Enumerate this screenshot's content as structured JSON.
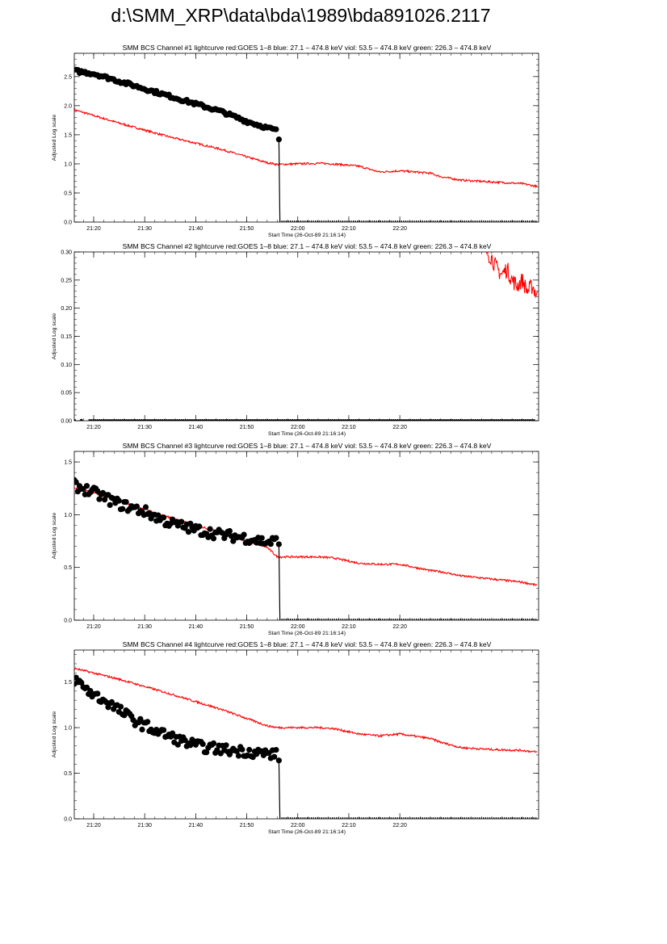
{
  "page": {
    "title": "d:\\SMM_XRP\\data\\bda\\1989\\bda891026.2117"
  },
  "chart_data": [
    {
      "type": "scatter",
      "title": "SMM BCS Channel #1 lightcurve  red:GOES 1–8  blue: 27.1 – 474.8 keV  viol: 53.5 – 474.8 keV  green: 226.3 – 474.8 keV",
      "xlabel": "Start Time (26-Oct-89 21:16:14)",
      "ylabel": "Adjusted Log scale",
      "xticks": [
        "21:20",
        "21:30",
        "21:40",
        "21:50",
        "22:00",
        "22:10",
        "22:20"
      ],
      "yticks": [
        "0.0",
        "0.5",
        "1.0",
        "1.5",
        "2.0",
        "2.5"
      ],
      "ylim": [
        0,
        2.9
      ],
      "series": [
        {
          "color": "#ff0000",
          "style": "line",
          "x": [
            16.2,
            25,
            35,
            45,
            50,
            54,
            56,
            60,
            64,
            67,
            72,
            76,
            80,
            86,
            88,
            92,
            98,
            104,
            107
          ],
          "y": [
            1.93,
            1.7,
            1.46,
            1.25,
            1.12,
            1.02,
            0.99,
            1.0,
            1.01,
            1.0,
            0.96,
            0.86,
            0.88,
            0.84,
            0.78,
            0.72,
            0.69,
            0.66,
            0.61
          ]
        },
        {
          "color": "#000000",
          "style": "points",
          "x": [
            16.2,
            20,
            25,
            30,
            35,
            40,
            45,
            50,
            54,
            56
          ],
          "y": [
            2.6,
            2.55,
            2.42,
            2.29,
            2.16,
            2.03,
            1.9,
            1.73,
            1.62,
            1.57
          ],
          "drop": {
            "x": 56.3,
            "y": 1.42
          }
        }
      ]
    },
    {
      "type": "scatter",
      "title": "SMM BCS Channel #2 lightcurve  red:GOES 1–8  blue: 27.1 – 474.8 keV  viol: 53.5 – 474.8 keV  green: 226.3 – 474.8 keV",
      "xlabel": "Start Time (26-Oct-89 21:16:14)",
      "ylabel": "Adjusted Log scale",
      "xticks": [
        "21:20",
        "21:30",
        "21:40",
        "21:50",
        "22:00",
        "22:10",
        "22:20"
      ],
      "yticks": [
        "0.00",
        "0.05",
        "0.10",
        "0.15",
        "0.20",
        "0.25",
        "0.30"
      ],
      "ylim": [
        0,
        0.3
      ],
      "series": [
        {
          "color": "#ff0000",
          "style": "line",
          "x": [
            97,
            98,
            99,
            100,
            101,
            102,
            103,
            104,
            105,
            106,
            107
          ],
          "y": [
            0.3,
            0.29,
            0.27,
            0.26,
            0.27,
            0.25,
            0.24,
            0.25,
            0.23,
            0.24,
            0.22
          ]
        },
        {
          "color": "#000000",
          "style": "points",
          "x": [
            16.2,
            56.3
          ],
          "y": [
            0.0,
            0.0
          ]
        }
      ]
    },
    {
      "type": "scatter",
      "title": "SMM BCS Channel #3 lightcurve  red:GOES 1–8  blue: 27.1 – 474.8 keV  viol: 53.5 – 474.8 keV  green: 226.3 – 474.8 keV",
      "xlabel": "Start Time (26-Oct-89 21:16:14)",
      "ylabel": "Adjusted Log scale",
      "xticks": [
        "21:20",
        "21:30",
        "21:40",
        "21:50",
        "22:00",
        "22:10",
        "22:20"
      ],
      "yticks": [
        "0.0",
        "0.5",
        "1.0",
        "1.5"
      ],
      "ylim": [
        0,
        1.6
      ],
      "series": [
        {
          "color": "#ff0000",
          "style": "line",
          "x": [
            16.2,
            25,
            35,
            45,
            50,
            54,
            56,
            60,
            64,
            67,
            72,
            76,
            80,
            86,
            88,
            92,
            98,
            104,
            107
          ],
          "y": [
            1.26,
            1.13,
            0.97,
            0.83,
            0.75,
            0.69,
            0.6,
            0.6,
            0.6,
            0.59,
            0.54,
            0.53,
            0.53,
            0.47,
            0.46,
            0.42,
            0.39,
            0.36,
            0.33
          ]
        },
        {
          "color": "#000000",
          "style": "points",
          "x": [
            16.2,
            20,
            25,
            30,
            35,
            40,
            45,
            50,
            54,
            56
          ],
          "y": [
            1.28,
            1.21,
            1.1,
            1.03,
            0.92,
            0.86,
            0.81,
            0.78,
            0.74,
            0.75
          ],
          "drop": {
            "x": 56.3,
            "y": 0.72
          }
        }
      ]
    },
    {
      "type": "scatter",
      "title": "SMM BCS Channel #4 lightcurve  red:GOES 1–8  blue: 27.1 – 474.8 keV  viol: 53.5 – 474.8 keV  green: 226.3 – 474.8 keV",
      "xlabel": "Start Time (26-Oct-89 21:16:14)",
      "ylabel": "Adjusted Log scale",
      "xticks": [
        "21:20",
        "21:30",
        "21:40",
        "21:50",
        "22:00",
        "22:10",
        "22:20"
      ],
      "yticks": [
        "0.0",
        "0.5",
        "1.0",
        "1.5"
      ],
      "ylim": [
        0,
        1.85
      ],
      "series": [
        {
          "color": "#ff0000",
          "style": "line",
          "x": [
            16.2,
            25,
            35,
            45,
            50,
            54,
            56,
            60,
            64,
            67,
            72,
            76,
            80,
            86,
            88,
            92,
            98,
            104,
            107
          ],
          "y": [
            1.65,
            1.53,
            1.37,
            1.2,
            1.1,
            1.02,
            1.0,
            1.0,
            1.0,
            0.99,
            0.93,
            0.91,
            0.93,
            0.88,
            0.84,
            0.78,
            0.76,
            0.75,
            0.73
          ]
        },
        {
          "color": "#000000",
          "style": "points",
          "x": [
            16.2,
            18,
            20,
            23,
            26,
            29,
            32,
            35,
            38,
            41,
            44,
            47,
            50,
            53,
            56
          ],
          "y": [
            1.53,
            1.45,
            1.36,
            1.27,
            1.15,
            1.05,
            0.97,
            0.9,
            0.84,
            0.79,
            0.77,
            0.75,
            0.74,
            0.72,
            0.7
          ],
          "drop": {
            "x": 56.3,
            "y": 0.64
          }
        }
      ]
    }
  ]
}
